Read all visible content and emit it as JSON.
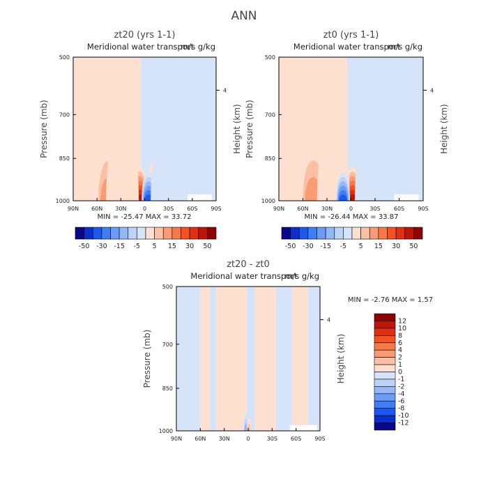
{
  "page_title": "ANN",
  "colors": {
    "c0": "#08088a",
    "c1": "#0b2fcb",
    "c2": "#1c58f0",
    "c3": "#3f7cf6",
    "c4": "#6a9cf7",
    "c5": "#94b8f7",
    "c6": "#bcd2f7",
    "c7": "#d6e4f9",
    "w0": "#fde0cf",
    "w1": "#fbc0a3",
    "w2": "#f99c74",
    "w3": "#f77848",
    "w4": "#f45222",
    "w5": "#e03010",
    "w6": "#bd1608",
    "w7": "#8c0404",
    "frame": "#000000",
    "text": "#222222",
    "notext": "#444444"
  },
  "chart_data": [
    {
      "type": "heatmap",
      "id": "zt20",
      "title": "zt20 (yrs 1-1)",
      "subtitle": "Meridional water transport",
      "units": "m/s g/kg",
      "ylabel": "Pressure (mb)",
      "ylabel_right": "Height (km)",
      "xticks": [
        "90N",
        "60N",
        "30N",
        "0",
        "30S",
        "60S",
        "90S"
      ],
      "yticks": [
        "500",
        "700",
        "850",
        "1000"
      ],
      "yticks_right": [
        "4"
      ],
      "stats": {
        "min_label": "MIN =",
        "min": "-25.47",
        "max_label": "MAX =",
        "max": "33.72"
      },
      "colorbar": {
        "labels": [
          "-50",
          "-30",
          "-15",
          "-5",
          "5",
          "15",
          "30",
          "50"
        ]
      },
      "background": {
        "north_value": 1,
        "south_value": -1,
        "boundary_lat": 5
      },
      "features": [
        {
          "lat": 6,
          "p_top": 880,
          "p_bottom": 1000,
          "peak": 33.72
        },
        {
          "lat": -13,
          "p_top": 860,
          "p_bottom": 1000,
          "peak": 18
        },
        {
          "lat": 45,
          "p_top": 800,
          "p_bottom": 1000,
          "peak": 12
        },
        {
          "lat": 28,
          "p_top": 740,
          "p_bottom": 1000,
          "peak": 4
        },
        {
          "lat": -5,
          "p_top": 900,
          "p_bottom": 1000,
          "peak": -25.47
        },
        {
          "lat": -38,
          "p_top": 840,
          "p_bottom": 1000,
          "peak": -14
        },
        {
          "lat": -25,
          "p_top": 780,
          "p_bottom": 1000,
          "peak": -4
        },
        {
          "lat": -48,
          "p_top": 760,
          "p_bottom": 1000,
          "peak": -3
        }
      ]
    },
    {
      "type": "heatmap",
      "id": "zt0",
      "title": "zt0 (yrs 1-1)",
      "subtitle": "Meridional water transport",
      "units": "m/s g/kg",
      "ylabel": "Pressure (mb)",
      "ylabel_right": "Height (km)",
      "xticks": [
        "90N",
        "60N",
        "30N",
        "0",
        "30S",
        "60S",
        "90S"
      ],
      "yticks": [
        "500",
        "700",
        "850",
        "1000"
      ],
      "yticks_right": [
        "4"
      ],
      "stats": {
        "min_label": "MIN =",
        "min": "-26.44",
        "max_label": "MAX =",
        "max": "33.87"
      },
      "colorbar": {
        "labels": [
          "-50",
          "-30",
          "-15",
          "-5",
          "5",
          "15",
          "30",
          "50"
        ]
      },
      "background": {
        "north_value": 1,
        "south_value": -1,
        "boundary_lat": 5
      },
      "features": [
        {
          "lat": -2,
          "p_top": 880,
          "p_bottom": 1000,
          "peak": 33.87
        },
        {
          "lat": 30,
          "p_top": 860,
          "p_bottom": 1000,
          "peak": 16
        },
        {
          "lat": 47,
          "p_top": 800,
          "p_bottom": 1000,
          "peak": 12
        },
        {
          "lat": 22,
          "p_top": 740,
          "p_bottom": 1000,
          "peak": 4
        },
        {
          "lat": 10,
          "p_top": 900,
          "p_bottom": 1000,
          "peak": -26.44
        },
        {
          "lat": -30,
          "p_top": 840,
          "p_bottom": 1000,
          "peak": -14
        },
        {
          "lat": -22,
          "p_top": 780,
          "p_bottom": 1000,
          "peak": -4
        },
        {
          "lat": -55,
          "p_top": 760,
          "p_bottom": 1000,
          "peak": -3
        }
      ]
    },
    {
      "type": "heatmap",
      "id": "diff",
      "title": "zt20 - zt0",
      "subtitle": "Meridional water transport",
      "units": "m/s g/kg",
      "ylabel": "Pressure (mb)",
      "ylabel_right": "Height (km)",
      "xticks": [
        "90N",
        "60N",
        "30N",
        "0",
        "30S",
        "60S",
        "90S"
      ],
      "yticks": [
        "500",
        "700",
        "850",
        "1000"
      ],
      "yticks_right": [
        "4"
      ],
      "stats": {
        "min_label": "MIN =",
        "min": "-2.76",
        "max_label": "MAX =",
        "max": "1.57"
      },
      "colorbar": {
        "labels": [
          "12",
          "10",
          "8",
          "6",
          "4",
          "2",
          "1",
          "0",
          "-1",
          "-2",
          "-4",
          "-6",
          "-8",
          "-10",
          "-12"
        ]
      },
      "background": {
        "stripes": [
          {
            "lat_from": 90,
            "lat_to": 60,
            "value": -0.5
          },
          {
            "lat_from": 60,
            "lat_to": 48,
            "value": 0.5
          },
          {
            "lat_from": 48,
            "lat_to": 40,
            "value": -0.5
          },
          {
            "lat_from": 40,
            "lat_to": 2,
            "value": 0.5
          },
          {
            "lat_from": 2,
            "lat_to": -8,
            "value": -0.5
          },
          {
            "lat_from": -8,
            "lat_to": -35,
            "value": 0.5
          },
          {
            "lat_from": -35,
            "lat_to": -55,
            "value": -0.5
          },
          {
            "lat_from": -55,
            "lat_to": -75,
            "value": 0.5
          },
          {
            "lat_from": -75,
            "lat_to": -90,
            "value": -0.5
          }
        ]
      },
      "features": [
        {
          "lat": 3,
          "p_top": 940,
          "p_bottom": 1000,
          "peak": -2.76
        },
        {
          "lat": -1,
          "p_top": 960,
          "p_bottom": 1000,
          "peak": 1.57
        }
      ]
    }
  ]
}
